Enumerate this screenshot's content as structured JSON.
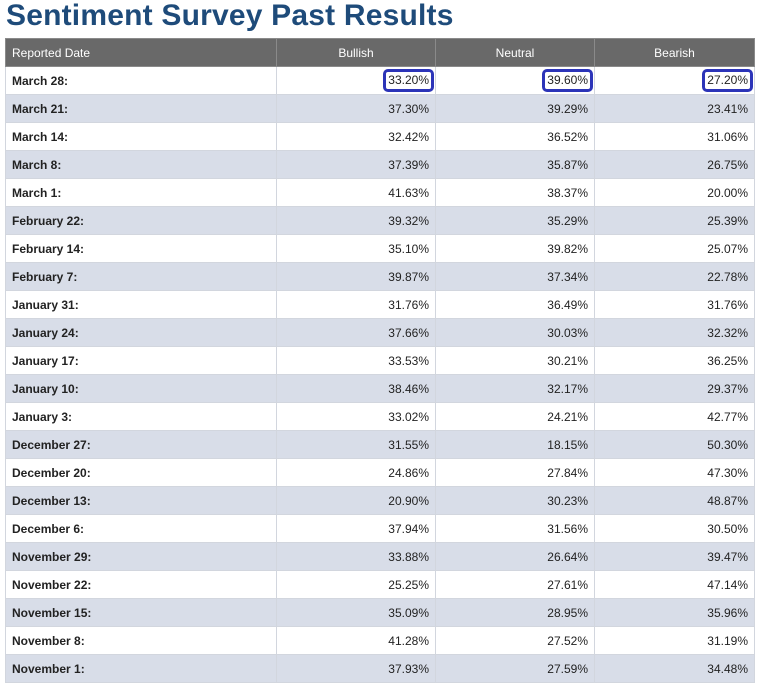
{
  "title": "Sentiment Survey Past Results",
  "headers": {
    "date": "Reported Date",
    "bullish": "Bullish",
    "neutral": "Neutral",
    "bearish": "Bearish"
  },
  "highlight_color": "#2c34b8",
  "rows": [
    {
      "date": "March 28:",
      "bullish": "33.20%",
      "neutral": "39.60%",
      "bearish": "27.20%",
      "highlighted": true
    },
    {
      "date": "March 21:",
      "bullish": "37.30%",
      "neutral": "39.29%",
      "bearish": "23.41%"
    },
    {
      "date": "March 14:",
      "bullish": "32.42%",
      "neutral": "36.52%",
      "bearish": "31.06%"
    },
    {
      "date": "March 8:",
      "bullish": "37.39%",
      "neutral": "35.87%",
      "bearish": "26.75%"
    },
    {
      "date": "March 1:",
      "bullish": "41.63%",
      "neutral": "38.37%",
      "bearish": "20.00%"
    },
    {
      "date": "February 22:",
      "bullish": "39.32%",
      "neutral": "35.29%",
      "bearish": "25.39%"
    },
    {
      "date": "February 14:",
      "bullish": "35.10%",
      "neutral": "39.82%",
      "bearish": "25.07%"
    },
    {
      "date": "February 7:",
      "bullish": "39.87%",
      "neutral": "37.34%",
      "bearish": "22.78%"
    },
    {
      "date": "January 31:",
      "bullish": "31.76%",
      "neutral": "36.49%",
      "bearish": "31.76%"
    },
    {
      "date": "January 24:",
      "bullish": "37.66%",
      "neutral": "30.03%",
      "bearish": "32.32%"
    },
    {
      "date": "January 17:",
      "bullish": "33.53%",
      "neutral": "30.21%",
      "bearish": "36.25%"
    },
    {
      "date": "January 10:",
      "bullish": "38.46%",
      "neutral": "32.17%",
      "bearish": "29.37%"
    },
    {
      "date": "January 3:",
      "bullish": "33.02%",
      "neutral": "24.21%",
      "bearish": "42.77%"
    },
    {
      "date": "December 27:",
      "bullish": "31.55%",
      "neutral": "18.15%",
      "bearish": "50.30%"
    },
    {
      "date": "December 20:",
      "bullish": "24.86%",
      "neutral": "27.84%",
      "bearish": "47.30%"
    },
    {
      "date": "December 13:",
      "bullish": "20.90%",
      "neutral": "30.23%",
      "bearish": "48.87%"
    },
    {
      "date": "December 6:",
      "bullish": "37.94%",
      "neutral": "31.56%",
      "bearish": "30.50%"
    },
    {
      "date": "November 29:",
      "bullish": "33.88%",
      "neutral": "26.64%",
      "bearish": "39.47%"
    },
    {
      "date": "November 22:",
      "bullish": "25.25%",
      "neutral": "27.61%",
      "bearish": "47.14%"
    },
    {
      "date": "November 15:",
      "bullish": "35.09%",
      "neutral": "28.95%",
      "bearish": "35.96%"
    },
    {
      "date": "November 8:",
      "bullish": "41.28%",
      "neutral": "27.52%",
      "bearish": "31.19%"
    },
    {
      "date": "November 1:",
      "bullish": "37.93%",
      "neutral": "27.59%",
      "bearish": "34.48%"
    }
  ]
}
